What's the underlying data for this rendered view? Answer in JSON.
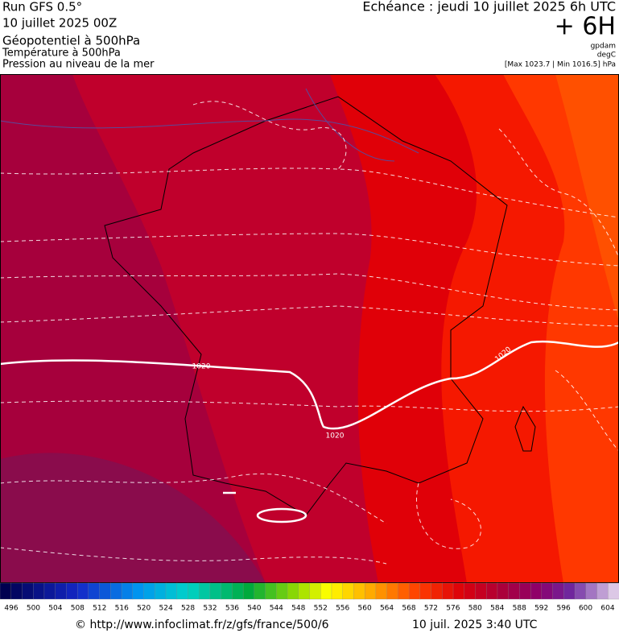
{
  "header": {
    "run": "Run GFS 0.5°",
    "date": "10 juillet 2025 00Z",
    "field1": "Géopotentiel à 500hPa",
    "field2": "Température à 500hPa",
    "field3": "Pression au niveau de la mer",
    "echeance": "Echéance : jeudi 10 juillet 2025 6h UTC",
    "lead": "+ 6H",
    "unit1": "gpdam",
    "unit2": "degC",
    "pressure_range": "[Max 1023.7 | Min 1016.5] hPa"
  },
  "map": {
    "isobar_labels": [
      "1020",
      "1020",
      "1020"
    ]
  },
  "colorbar": {
    "labels": [
      496,
      500,
      504,
      508,
      512,
      516,
      520,
      524,
      528,
      532,
      536,
      540,
      544,
      548,
      552,
      556,
      560,
      564,
      568,
      572,
      576,
      580,
      584,
      588,
      592,
      596,
      600,
      604
    ]
  },
  "footer": {
    "url": "© http://www.infoclimat.fr/z/gfs/france/500/6",
    "generated": "10 juil. 2025  3:40 UTC"
  }
}
